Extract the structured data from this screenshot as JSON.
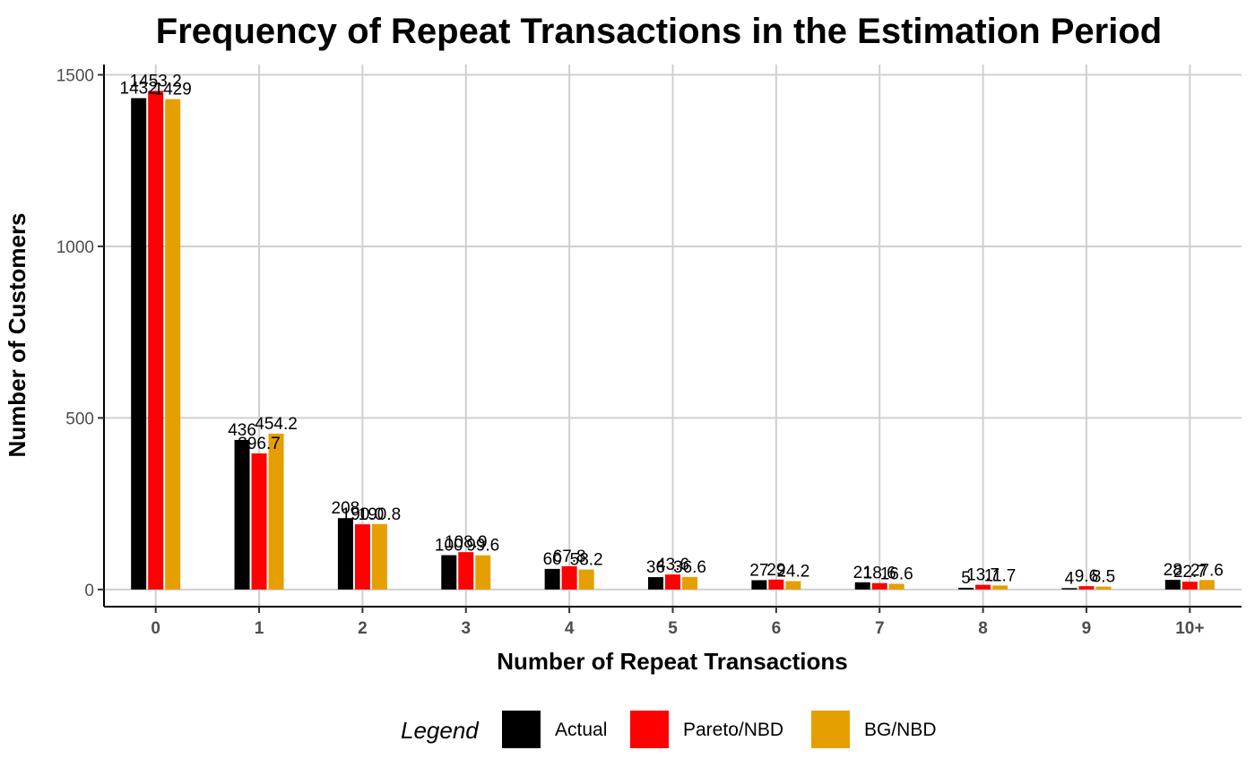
{
  "chart_data": {
    "type": "bar",
    "title": "Frequency of Repeat Transactions in the Estimation Period",
    "xlabel": "Number of Repeat Transactions",
    "ylabel": "Number of Customers",
    "categories": [
      "0",
      "1",
      "2",
      "3",
      "4",
      "5",
      "6",
      "7",
      "8",
      "9",
      "10+"
    ],
    "yticks": [
      "0",
      "500",
      "1000",
      "1500"
    ],
    "ylim": [
      -50,
      1530
    ],
    "grid": true,
    "legend_title": "Legend",
    "legend_position": "bottom",
    "series": [
      {
        "name": "Actual",
        "color": "#000000",
        "values": [
          1432,
          436,
          208,
          100,
          60,
          36,
          27,
          21,
          5,
          4,
          28
        ],
        "labels": [
          "1432",
          "436",
          "208",
          "100",
          "60",
          "36",
          "27",
          "21",
          "5",
          "4",
          "28"
        ]
      },
      {
        "name": "Pareto/NBD",
        "color": "#ff0000",
        "values": [
          1453.2,
          396.7,
          190.0,
          108.9,
          67.8,
          43.6,
          29,
          18.6,
          13.7,
          9.6,
          22.7
        ],
        "labels": [
          "1453.2",
          "396.7",
          "190.0",
          "108.9",
          "67.8",
          "43.6",
          "29",
          "18.6",
          "13.7",
          "9.6",
          "22.7"
        ]
      },
      {
        "name": "BG/NBD",
        "color": "#e69f00",
        "values": [
          1429,
          454.2,
          190.8,
          99.6,
          58.2,
          36.6,
          24.2,
          16.6,
          11.7,
          8.5,
          27.6
        ],
        "labels": [
          "1429",
          "454.2",
          "190.8",
          "99.6",
          "58.2",
          "36.6",
          "24.2",
          "16.6",
          "11.7",
          "8.5",
          "27.6"
        ]
      }
    ]
  }
}
